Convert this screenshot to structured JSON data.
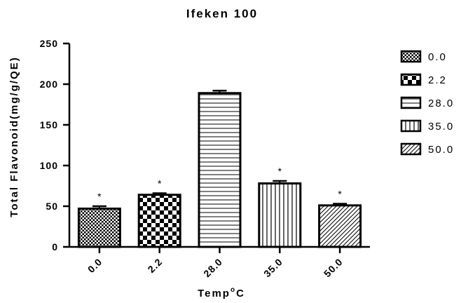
{
  "chart_data": {
    "type": "bar",
    "title": "Ifeken 100",
    "xlabel_main": "Temp",
    "xlabel_sup": "o",
    "xlabel_end": "C",
    "ylabel": "Total Flavonoid(mg/g/QE)",
    "ylim": [
      0,
      250
    ],
    "yticks": [
      "0",
      "50",
      "100",
      "150",
      "200",
      "250"
    ],
    "categories": [
      "0.0",
      "2.2",
      "28.0",
      "35.0",
      "50.0"
    ],
    "values": [
      47,
      64,
      189,
      78,
      51
    ],
    "errors": [
      3,
      2,
      3,
      3,
      2
    ],
    "significance": [
      "*",
      "*",
      "",
      "*",
      "*"
    ],
    "patterns": [
      "checker-small",
      "checker-large",
      "horizontal-lines",
      "vertical-lines",
      "diagonal-lines"
    ],
    "legend": [
      "0.0",
      "2.2",
      "28.0",
      "35.0",
      "50.0"
    ],
    "legend_position": "right",
    "grid": false
  }
}
